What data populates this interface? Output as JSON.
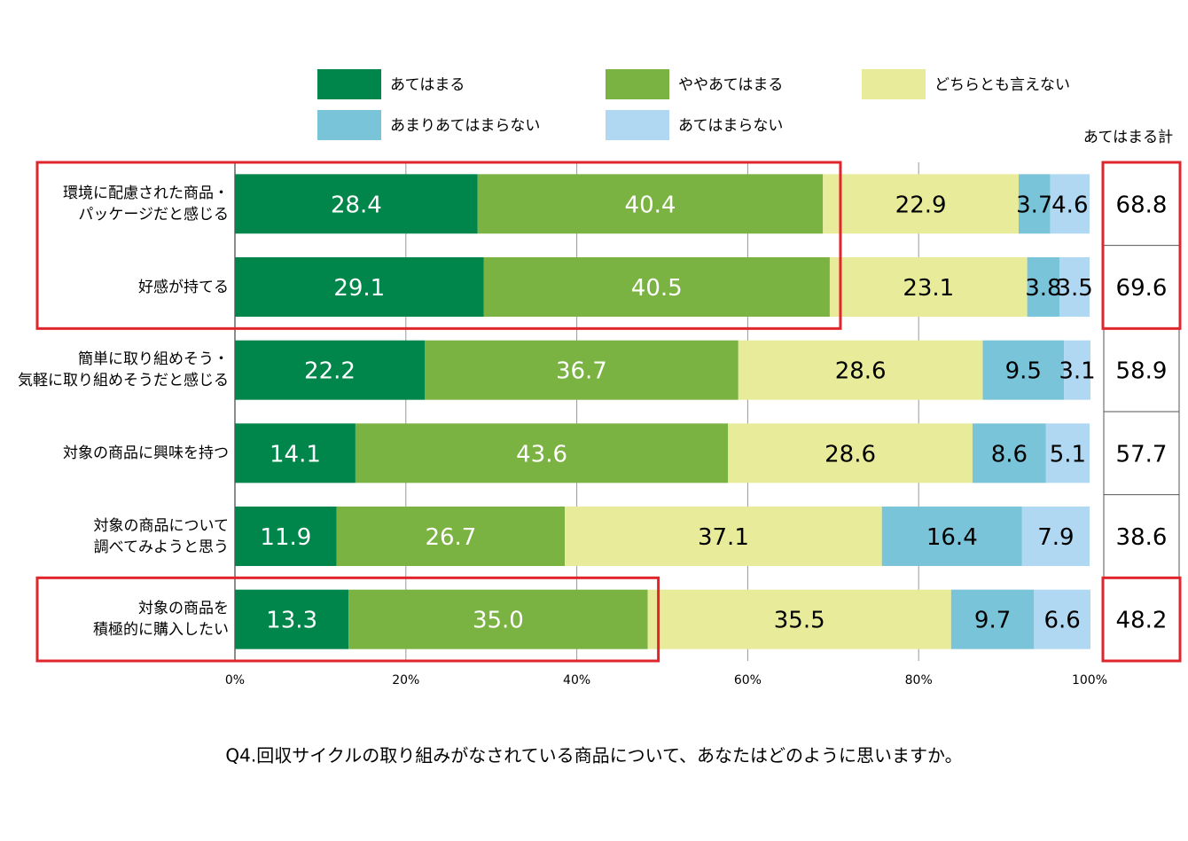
{
  "chart_data": {
    "type": "stacked_barh",
    "caption": "Q4.回収サイクルの取り組みがなされている商品について、あなたはどのように思いますか。",
    "categories": [
      "環境に配慮された商品・\nパッケージだと感じる",
      "好感が持てる",
      "簡単に取り組めそう・\n気軽に取り組めそうだと感じる",
      "対象の商品に興味を持つ",
      "対象の商品について\n調べてみようと思う",
      "対象の商品を\n積極的に購入したい"
    ],
    "series": [
      {
        "name": "あてはまる",
        "color": "#00854a",
        "label_color": "#ffffff",
        "values": [
          28.4,
          29.1,
          22.2,
          14.1,
          11.9,
          13.3
        ]
      },
      {
        "name": "ややあてはまる",
        "color": "#7ab342",
        "label_color": "#ffffff",
        "values": [
          40.4,
          40.5,
          36.7,
          43.6,
          26.7,
          35.0
        ],
        "value_labels": [
          "40.4",
          "40.5",
          "36.7",
          "43.6",
          "26.7",
          "35.0"
        ]
      },
      {
        "name": "どちらとも言えない",
        "color": "#e8ec9a",
        "label_color": "#000000",
        "values": [
          22.9,
          23.1,
          28.6,
          28.6,
          37.1,
          35.5
        ]
      },
      {
        "name": "あまりあてはまらない",
        "color": "#7ac4da",
        "label_color": "#000000",
        "values": [
          3.7,
          3.8,
          9.5,
          8.6,
          16.4,
          9.7
        ]
      },
      {
        "name": "あてはまらない",
        "color": "#b0d8f2",
        "label_color": "#000000",
        "values": [
          4.6,
          3.5,
          3.1,
          5.1,
          7.9,
          6.6
        ]
      }
    ],
    "totals": {
      "label": "あてはまる計",
      "values": [
        68.8,
        69.6,
        58.9,
        57.7,
        38.6,
        48.2
      ]
    },
    "highlight_groups": [
      [
        0,
        1
      ],
      [
        5
      ]
    ],
    "highlight_color": "#e0252b",
    "xlim": [
      0,
      100
    ],
    "xticks": [
      {
        "value": 0,
        "label": "0%"
      },
      {
        "value": 20,
        "label": "20%"
      },
      {
        "value": 40,
        "label": "40%"
      },
      {
        "value": 60,
        "label": "60%"
      },
      {
        "value": 80,
        "label": "80%"
      },
      {
        "value": 100,
        "label": "100%"
      }
    ],
    "grid": true
  }
}
